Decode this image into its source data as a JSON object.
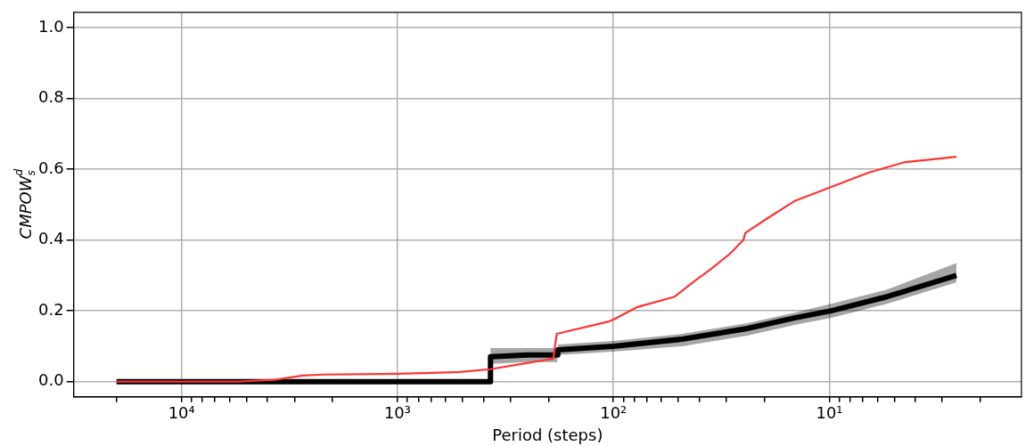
{
  "chart_data": {
    "type": "line",
    "xlabel": "Period (steps)",
    "ylabel": "CMPOW$_{s}$$^{d}$",
    "log": "x",
    "grid": true,
    "legend": false,
    "marker": "none",
    "line_style": "solid",
    "xlim": [
      31600,
      1.29
    ],
    "ylim": [
      -0.043,
      1.043
    ],
    "xticks": [
      {
        "value": 20000,
        "label": null
      },
      {
        "value": 10000,
        "label": "10⁴"
      },
      {
        "value": 9000,
        "label": null
      },
      {
        "value": 8000,
        "label": null
      },
      {
        "value": 7000,
        "label": null
      },
      {
        "value": 6000,
        "label": null
      },
      {
        "value": 5000,
        "label": null
      },
      {
        "value": 4000,
        "label": null
      },
      {
        "value": 3000,
        "label": null
      },
      {
        "value": 2000,
        "label": null
      },
      {
        "value": 1000,
        "label": "10³"
      },
      {
        "value": 900,
        "label": null
      },
      {
        "value": 800,
        "label": null
      },
      {
        "value": 700,
        "label": null
      },
      {
        "value": 600,
        "label": null
      },
      {
        "value": 500,
        "label": null
      },
      {
        "value": 400,
        "label": null
      },
      {
        "value": 300,
        "label": null
      },
      {
        "value": 200,
        "label": null
      },
      {
        "value": 100,
        "label": "10²"
      },
      {
        "value": 90,
        "label": null
      },
      {
        "value": 80,
        "label": null
      },
      {
        "value": 70,
        "label": null
      },
      {
        "value": 60,
        "label": null
      },
      {
        "value": 50,
        "label": null
      },
      {
        "value": 40,
        "label": null
      },
      {
        "value": 30,
        "label": null
      },
      {
        "value": 20,
        "label": null
      },
      {
        "value": 10,
        "label": "10¹"
      },
      {
        "value": 9,
        "label": null
      },
      {
        "value": 8,
        "label": null
      },
      {
        "value": 7,
        "label": null
      },
      {
        "value": 6,
        "label": null
      },
      {
        "value": 5,
        "label": null
      },
      {
        "value": 4,
        "label": null
      },
      {
        "value": 3,
        "label": null
      },
      {
        "value": 2,
        "label": null
      }
    ],
    "yticks": [
      {
        "value": 0,
        "label": "0.0"
      },
      {
        "value": 0.2,
        "label": "0.2"
      },
      {
        "value": 0.4,
        "label": "0.4"
      },
      {
        "value": 0.6,
        "label": "0.6"
      },
      {
        "value": 0.8,
        "label": "0.8"
      },
      {
        "value": 1,
        "label": "1.0"
      }
    ],
    "series": [
      {
        "color": "#000000",
        "x": [
          20000,
          5000,
          372,
          371,
          250,
          182,
          181,
          100,
          48,
          24,
          14.5,
          9.8,
          5.4,
          2.58
        ],
        "values": [
          0,
          0,
          0,
          0.07,
          0.075,
          0.075,
          0.09,
          0.1,
          0.12,
          0.15,
          0.18,
          0.2,
          0.24,
          0.3
        ],
        "lower": [
          0,
          0,
          0,
          0.05,
          0.055,
          0.055,
          0.075,
          0.085,
          0.1,
          0.13,
          0.16,
          0.18,
          0.22,
          0.28
        ],
        "upper": [
          0,
          0,
          0,
          0.095,
          0.095,
          0.095,
          0.105,
          0.115,
          0.135,
          0.165,
          0.195,
          0.22,
          0.26,
          0.335
        ]
      },
      {
        "color": "#ff3333",
        "x": [
          20000,
          5500,
          3700,
          2750,
          2200,
          1000,
          515,
          372,
          190,
          183,
          105,
          100,
          78,
          52,
          43,
          35,
          29,
          25,
          24.5,
          19.5,
          14.5,
          9.8,
          6.6,
          4.45,
          2.58
        ],
        "values": [
          0,
          0,
          0.005,
          0.017,
          0.02,
          0.022,
          0.027,
          0.035,
          0.065,
          0.135,
          0.17,
          0.175,
          0.21,
          0.24,
          0.28,
          0.32,
          0.36,
          0.4,
          0.42,
          0.46,
          0.51,
          0.55,
          0.59,
          0.62,
          0.635
        ]
      }
    ]
  }
}
